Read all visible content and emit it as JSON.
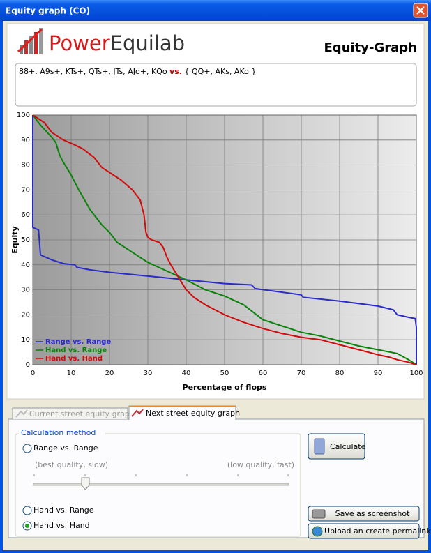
{
  "window": {
    "title": "Equity graph (CO)"
  },
  "header": {
    "logo_part1": "Power",
    "logo_part2": "Equilab",
    "heading": "Equity-Graph"
  },
  "range_text": {
    "hero": "88+, A9s+, KTs+, QTs+, JTs, AJo+, KQo",
    "vs": "vs.",
    "villain": "{ QQ+, AKs, AKo }"
  },
  "chart_data": {
    "type": "line",
    "x_label": "Percentage of flops",
    "y_label": "Equity",
    "xlim": [
      0,
      100
    ],
    "ylim": [
      0,
      100
    ],
    "xticks": [
      0,
      10,
      20,
      30,
      40,
      50,
      60,
      70,
      80,
      90,
      100
    ],
    "yticks": [
      0,
      10,
      20,
      30,
      40,
      50,
      60,
      70,
      80,
      90,
      100
    ],
    "grid": true,
    "legend": "lower left",
    "series": [
      {
        "name": "Range vs. Range",
        "color": "#2a2ac8",
        "x": [
          0,
          0,
          1.5,
          2,
          5,
          8,
          11,
          11.5,
          15,
          20,
          30,
          40,
          50,
          57,
          58,
          70,
          70.5,
          80,
          90,
          94,
          95,
          98,
          99.7,
          100,
          100
        ],
        "values": [
          100,
          55,
          54,
          44,
          42,
          40.5,
          40,
          39,
          38,
          37,
          35.5,
          34,
          32.5,
          32,
          30.5,
          28,
          27,
          25.5,
          23.5,
          22,
          20,
          19,
          18.5,
          15,
          0
        ]
      },
      {
        "name": "Hand vs. Range",
        "color": "#0a820a",
        "x": [
          0,
          2,
          5,
          6,
          7,
          8,
          10,
          12,
          15,
          18,
          20,
          22,
          25,
          28,
          30,
          35,
          40,
          45,
          50,
          55,
          60,
          65,
          70,
          75,
          80,
          85,
          90,
          95,
          98,
          100
        ],
        "values": [
          100,
          96,
          91,
          89,
          84,
          81,
          76,
          70,
          62,
          56,
          53,
          49,
          46,
          43,
          41,
          37.5,
          34,
          30,
          27.5,
          24,
          18,
          15.5,
          13,
          11.5,
          9.5,
          7.5,
          6,
          4.5,
          2,
          0
        ]
      },
      {
        "name": "Hand vs. Hand",
        "color": "#d20a0a",
        "x": [
          0,
          3,
          5,
          8,
          11,
          13,
          16,
          18,
          20,
          23,
          26,
          28,
          29,
          29.5,
          30,
          31,
          33,
          34,
          35,
          36,
          38,
          40,
          42,
          45,
          50,
          55,
          60,
          65,
          70,
          75,
          80,
          85,
          90,
          93,
          95,
          98,
          100
        ],
        "values": [
          100,
          97,
          93,
          90,
          88,
          86.5,
          83,
          79,
          77,
          74,
          70,
          66,
          60,
          53,
          51,
          50,
          49,
          47,
          43,
          40,
          35,
          30,
          27,
          24,
          20,
          17,
          14.5,
          12.5,
          11,
          10,
          8,
          6,
          4,
          3,
          2,
          1,
          0
        ]
      }
    ]
  },
  "tabs": [
    "Current street equity graph",
    "Next street equity graph"
  ],
  "calc": {
    "group_title": "Calculation method",
    "radios": [
      "Range vs. Range",
      "Hand vs. Range",
      "Hand vs. Hand"
    ],
    "slider_left": "(best quality, slow)",
    "slider_right": "(low quality, fast)"
  },
  "buttons": {
    "calculate": "Calculate",
    "screenshot": "Save as screenshot",
    "permalink": "Upload an create permalink"
  }
}
